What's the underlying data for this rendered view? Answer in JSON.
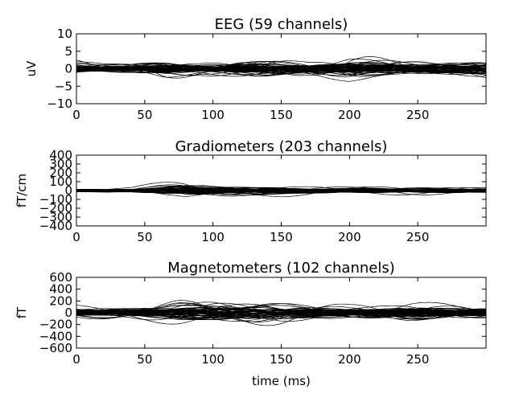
{
  "chart_data": [
    {
      "type": "line",
      "title": "EEG (59 channels)",
      "ylabel": "uV",
      "xlabel": "",
      "xlim": [
        0,
        300
      ],
      "ylim": [
        -10,
        10
      ],
      "yticks": [
        "10",
        "5",
        "0",
        "−5",
        "−10"
      ],
      "ytick_values": [
        10,
        5,
        0,
        -5,
        -10
      ],
      "xticks": [
        "0",
        "50",
        "100",
        "150",
        "200",
        "250"
      ],
      "xtick_values": [
        0,
        50,
        100,
        150,
        200,
        250
      ],
      "channel_count": 59,
      "amplitude_envelope": [
        {
          "x": 0,
          "y": 2.5
        },
        {
          "x": 20,
          "y": 1.5
        },
        {
          "x": 40,
          "y": 1.5
        },
        {
          "x": 65,
          "y": 3.0
        },
        {
          "x": 90,
          "y": 2.0
        },
        {
          "x": 140,
          "y": 3.0
        },
        {
          "x": 170,
          "y": 2.0
        },
        {
          "x": 200,
          "y": 3.5
        },
        {
          "x": 240,
          "y": 2.5
        },
        {
          "x": 280,
          "y": 2.5
        },
        {
          "x": 300,
          "y": 3.0
        }
      ]
    },
    {
      "type": "line",
      "title": "Gradiometers (203 channels)",
      "ylabel": "fT/cm",
      "xlabel": "",
      "xlim": [
        0,
        300
      ],
      "ylim": [
        -400,
        400
      ],
      "yticks": [
        "400",
        "300",
        "200",
        "100",
        "0",
        "−100",
        "−200",
        "−300",
        "−400"
      ],
      "ytick_values": [
        400,
        300,
        200,
        100,
        0,
        -100,
        -200,
        -300,
        -400
      ],
      "xticks": [
        "0",
        "50",
        "100",
        "150",
        "200",
        "250"
      ],
      "xtick_values": [
        0,
        50,
        100,
        150,
        200,
        250
      ],
      "channel_count": 203,
      "amplitude_envelope": [
        {
          "x": 0,
          "y": 20
        },
        {
          "x": 40,
          "y": 25
        },
        {
          "x": 60,
          "y": 60
        },
        {
          "x": 80,
          "y": 100
        },
        {
          "x": 100,
          "y": 70
        },
        {
          "x": 150,
          "y": 60
        },
        {
          "x": 200,
          "y": 35
        },
        {
          "x": 240,
          "y": 40
        },
        {
          "x": 300,
          "y": 25
        }
      ]
    },
    {
      "type": "line",
      "title": "Magnetometers (102 channels)",
      "ylabel": "fT",
      "xlabel": "time (ms)",
      "xlim": [
        0,
        300
      ],
      "ylim": [
        -600,
        600
      ],
      "yticks": [
        "600",
        "400",
        "200",
        "0",
        "−200",
        "−400",
        "−600"
      ],
      "ytick_values": [
        600,
        400,
        200,
        0,
        -200,
        -400,
        -600
      ],
      "xticks": [
        "0",
        "50",
        "100",
        "150",
        "200",
        "250"
      ],
      "xtick_values": [
        0,
        50,
        100,
        150,
        200,
        250
      ],
      "channel_count": 102,
      "amplitude_envelope": [
        {
          "x": 0,
          "y": 100
        },
        {
          "x": 40,
          "y": 100
        },
        {
          "x": 75,
          "y": 200
        },
        {
          "x": 100,
          "y": 220
        },
        {
          "x": 150,
          "y": 180
        },
        {
          "x": 200,
          "y": 110
        },
        {
          "x": 245,
          "y": 150
        },
        {
          "x": 300,
          "y": 100
        }
      ]
    }
  ]
}
